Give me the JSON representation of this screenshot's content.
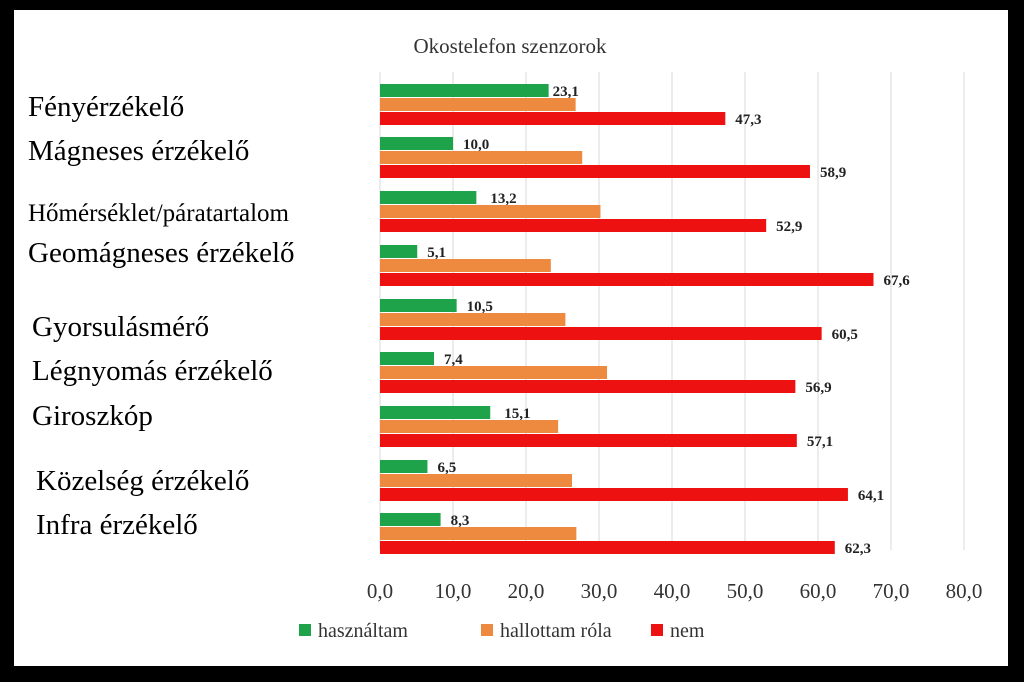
{
  "chart_data": {
    "type": "bar",
    "orientation": "horizontal",
    "title": "Okostelefon szenzorok",
    "categories": [
      "Fényérzékelő",
      "Mágneses érzékelő",
      "Hőmérséklet/páratartalom",
      "Geomágneses érzékelő",
      "Gyorsulásmérő",
      "Légnyomás érzékelő",
      "Giroszkóp",
      "Közelség érzékelő",
      "Infra érzékelő"
    ],
    "series": [
      {
        "name": "használtam",
        "color": "#1fa34a",
        "values": [
          23.1,
          10.0,
          13.2,
          5.1,
          10.5,
          7.4,
          15.1,
          6.5,
          8.3
        ],
        "labels": [
          "23,1",
          "10,0",
          "13,2",
          "5,1",
          "10,5",
          "7,4",
          "15,1",
          "6,5",
          "8,3"
        ]
      },
      {
        "name": "hallottam róla",
        "color": "#ed8a3f",
        "values": [
          26.8,
          27.7,
          30.2,
          23.4,
          25.4,
          31.1,
          24.4,
          26.3,
          26.9
        ]
      },
      {
        "name": "nem",
        "color": "#ee1111",
        "values": [
          47.3,
          58.9,
          52.9,
          67.6,
          60.5,
          56.9,
          57.1,
          64.1,
          62.3
        ],
        "labels": [
          "47,3",
          "58,9",
          "52,9",
          "67,6",
          "60,5",
          "56,9",
          "57,1",
          "64,1",
          "62,3"
        ]
      }
    ],
    "xlim": [
      0,
      80
    ],
    "xticks": [
      "0,0",
      "10,0",
      "20,0",
      "30,0",
      "40,0",
      "50,0",
      "60,0",
      "70,0",
      "80,0"
    ],
    "grid": true,
    "legend_position": "bottom"
  }
}
